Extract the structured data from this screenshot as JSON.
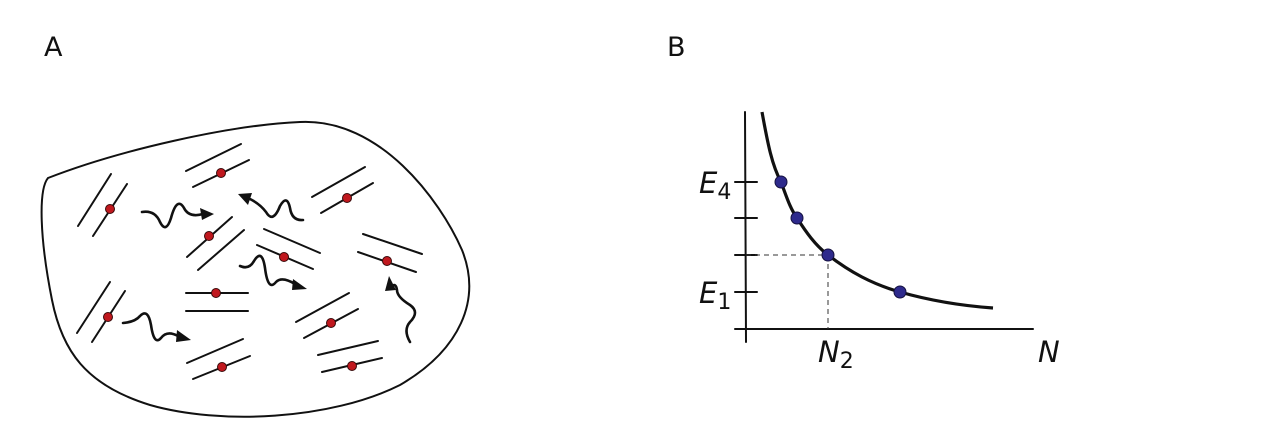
{
  "panels": {
    "a": {
      "label": "A"
    },
    "b": {
      "label": "B",
      "x_axis_label": "N",
      "x_tick_label": {
        "base": "N",
        "sub": "2"
      },
      "y_tick_labels": [
        {
          "base": "E",
          "sub": "4"
        },
        {
          "base": "E",
          "sub": "1"
        }
      ]
    }
  },
  "colors": {
    "molecule_dot": "#c0181e",
    "curve_point": "#2e2a8c",
    "line": "#111111"
  }
}
